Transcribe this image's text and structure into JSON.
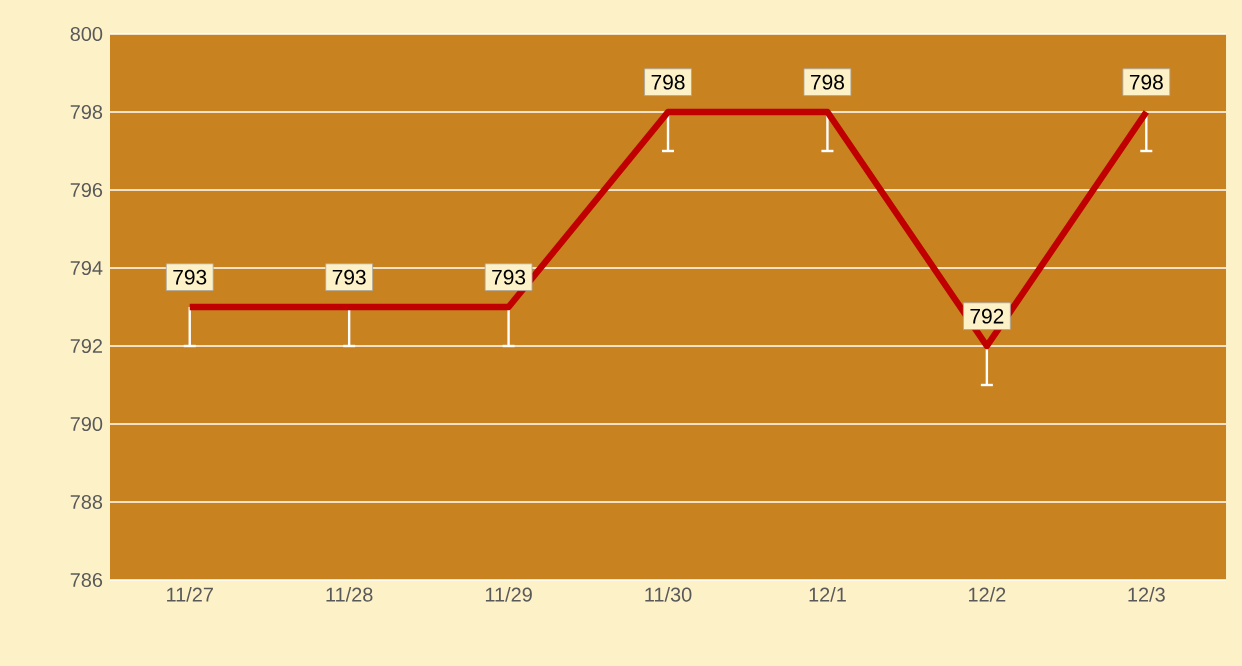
{
  "chart_data": {
    "type": "line",
    "categories": [
      "11/27",
      "11/28",
      "11/29",
      "11/30",
      "12/1",
      "12/2",
      "12/3"
    ],
    "values": [
      793,
      793,
      793,
      798,
      798,
      792,
      798
    ],
    "errors": [
      [
        792,
        793
      ],
      [
        792,
        793
      ],
      [
        792,
        793
      ],
      [
        797,
        798
      ],
      [
        797,
        798
      ],
      [
        791,
        792
      ],
      [
        797,
        798
      ]
    ],
    "color": "#c00000",
    "ylim": [
      786,
      800
    ],
    "yticks": [
      786,
      788,
      790,
      792,
      794,
      796,
      798,
      800
    ],
    "grid": "y",
    "data_labels": true,
    "marker": "none",
    "line_style": "solid"
  }
}
